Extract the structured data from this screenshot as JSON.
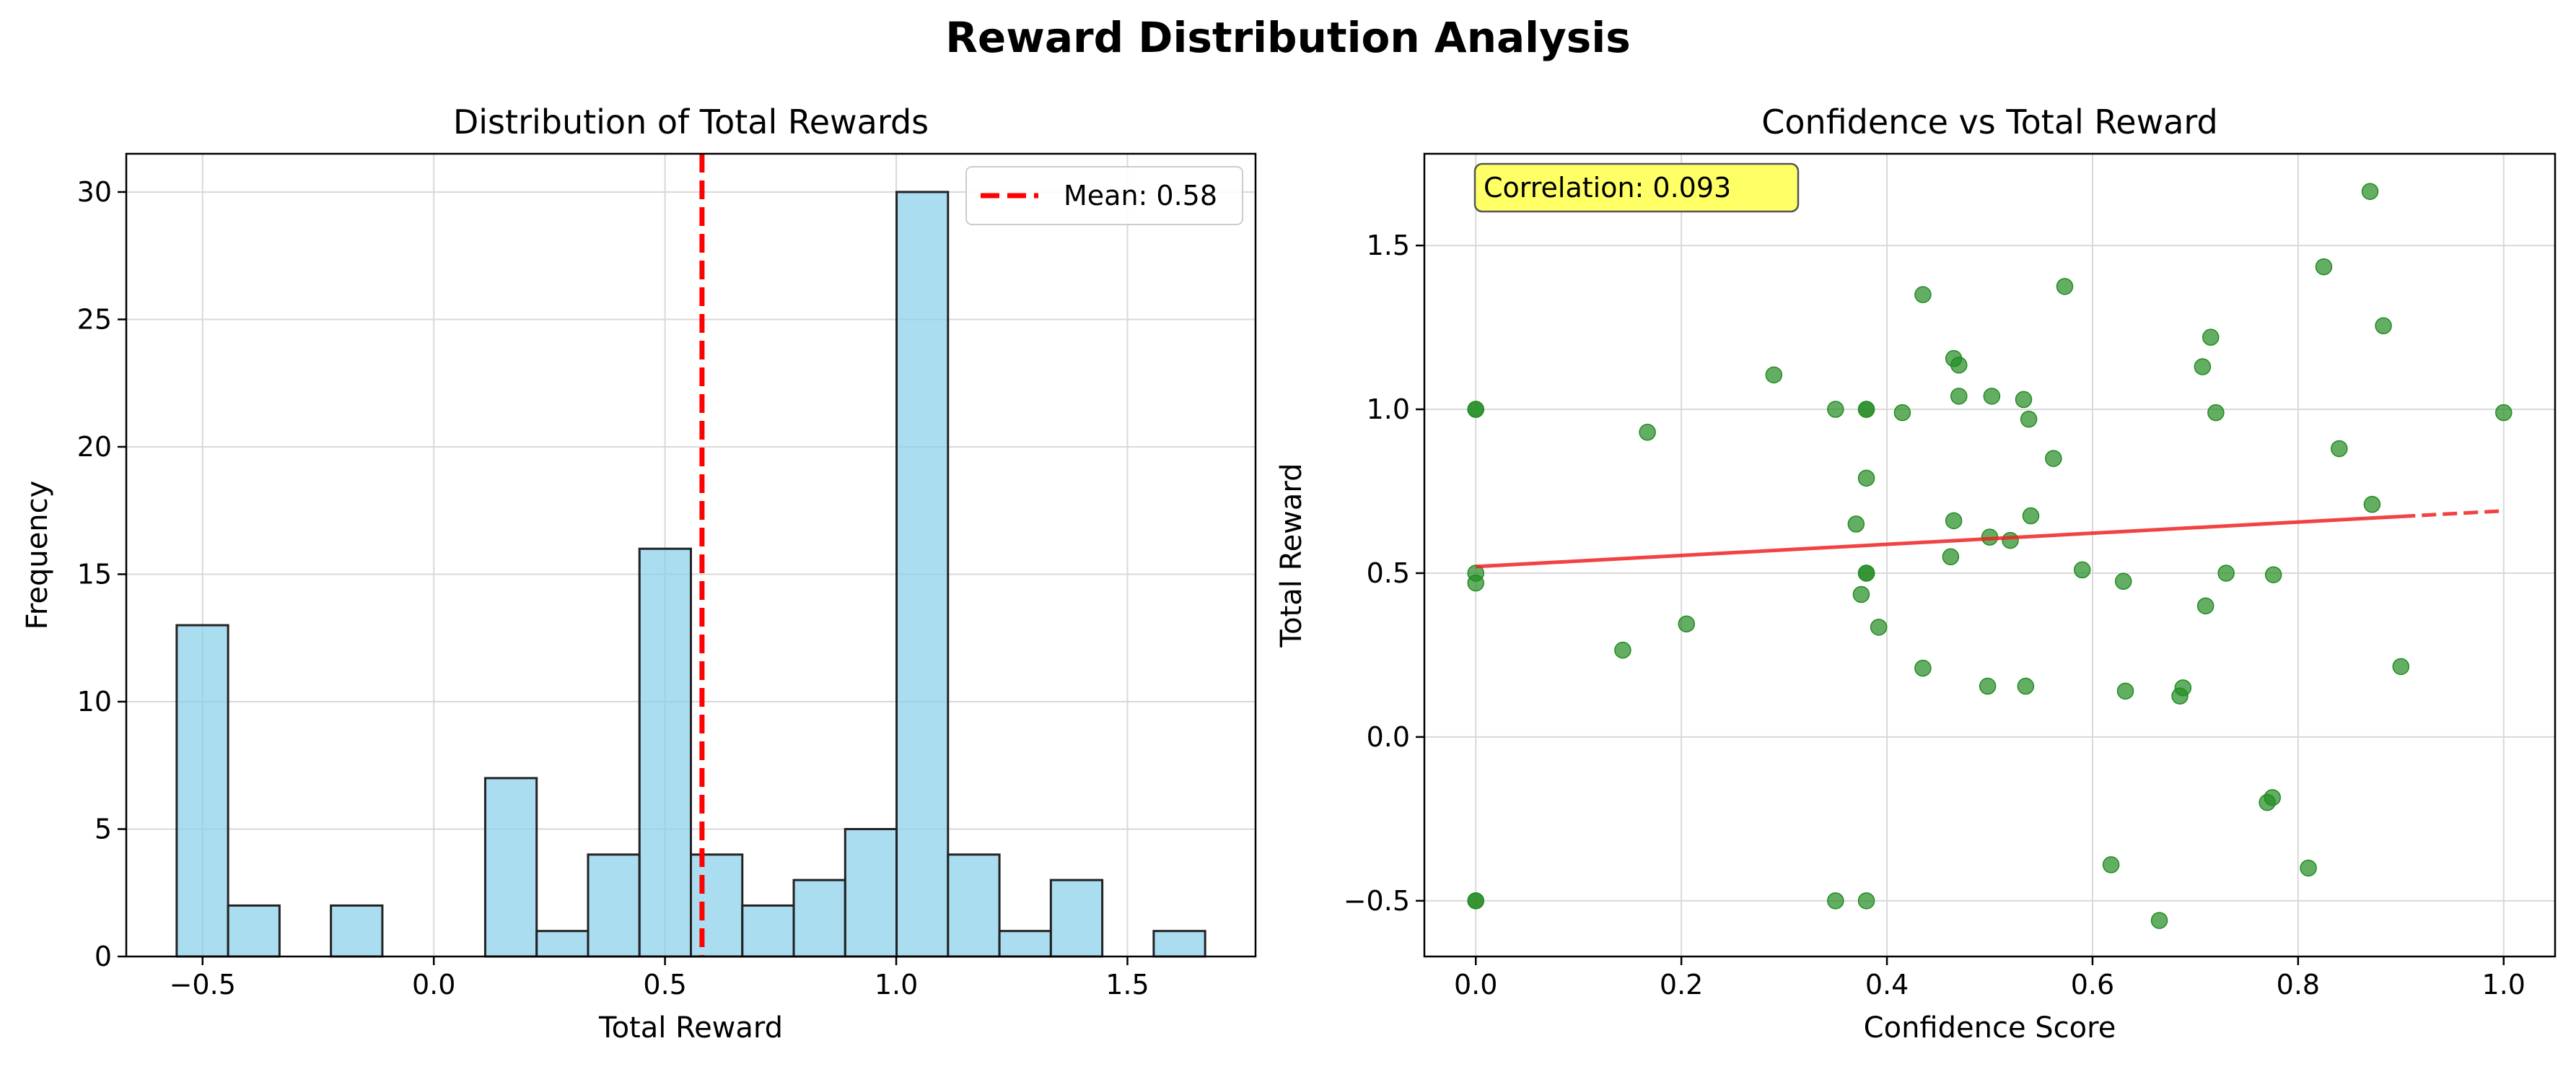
{
  "suptitle": "Reward Distribution Analysis",
  "colors": {
    "hist_fill": "#87CEEB",
    "hist_edge": "#222222",
    "mean_line": "#FF0000",
    "scatter": "#228B22",
    "trend": "#EE2222",
    "annot_bg": "#FFFF66"
  },
  "chart_data": [
    {
      "type": "bar",
      "title": "Distribution of Total Rewards",
      "xlabel": "Total Reward",
      "ylabel": "Frequency",
      "xlim": [
        -0.665,
        1.777
      ],
      "ylim": [
        0,
        31.5
      ],
      "xticks": [
        -0.5,
        0.0,
        0.5,
        1.0,
        1.5
      ],
      "xtick_labels": [
        "−0.5",
        "0.0",
        "0.5",
        "1.0",
        "1.5"
      ],
      "yticks": [
        0,
        5,
        10,
        15,
        20,
        25,
        30
      ],
      "ytick_labels": [
        "0",
        "5",
        "10",
        "15",
        "20",
        "25",
        "30"
      ],
      "bin_edges": [
        -0.556,
        -0.4448,
        -0.3336,
        -0.2224,
        -0.1112,
        0.0,
        0.1112,
        0.2224,
        0.3336,
        0.4448,
        0.556,
        0.6672,
        0.7784,
        0.8896,
        1.0008,
        1.112,
        1.2232,
        1.3344,
        1.4456,
        1.5568,
        1.668
      ],
      "counts": [
        13,
        2,
        0,
        2,
        0,
        0,
        7,
        1,
        4,
        16,
        4,
        2,
        3,
        5,
        30,
        4,
        1,
        3,
        0,
        1
      ],
      "grid": true,
      "mean": 0.58,
      "legend": {
        "label": "Mean: 0.58",
        "position": "upper right"
      }
    },
    {
      "type": "scatter",
      "title": "Confidence vs Total Reward",
      "xlabel": "Confidence Score",
      "ylabel": "Total Reward",
      "xlim": [
        -0.05,
        1.05
      ],
      "ylim": [
        -0.67,
        1.78
      ],
      "xticks": [
        0.0,
        0.2,
        0.4,
        0.6,
        0.8,
        1.0
      ],
      "xtick_labels": [
        "0.0",
        "0.2",
        "0.4",
        "0.6",
        "0.8",
        "1.0"
      ],
      "yticks": [
        -0.5,
        0.0,
        0.5,
        1.0,
        1.5
      ],
      "ytick_labels": [
        "−0.5",
        "0.0",
        "0.5",
        "1.0",
        "1.5"
      ],
      "grid": true,
      "annotation": "Correlation: 0.093",
      "trend": {
        "intercept": 0.52,
        "slope": 0.17,
        "x_solid_end": 0.9
      },
      "points": [
        [
          0.0,
          1.0
        ],
        [
          0.0,
          1.0
        ],
        [
          0.0,
          0.5
        ],
        [
          0.0,
          0.47
        ],
        [
          0.0,
          -0.5
        ],
        [
          0.0,
          -0.5
        ],
        [
          0.143,
          0.265
        ],
        [
          0.167,
          0.93
        ],
        [
          0.205,
          0.345
        ],
        [
          0.29,
          1.105
        ],
        [
          0.35,
          1.0
        ],
        [
          0.35,
          -0.5
        ],
        [
          0.37,
          0.65
        ],
        [
          0.375,
          0.435
        ],
        [
          0.38,
          1.0
        ],
        [
          0.38,
          1.0
        ],
        [
          0.38,
          0.79
        ],
        [
          0.38,
          0.5
        ],
        [
          0.38,
          0.5
        ],
        [
          0.38,
          -0.5
        ],
        [
          0.392,
          0.335
        ],
        [
          0.415,
          0.99
        ],
        [
          0.435,
          1.35
        ],
        [
          0.435,
          0.21
        ],
        [
          0.462,
          0.55
        ],
        [
          0.465,
          1.155
        ],
        [
          0.465,
          0.66
        ],
        [
          0.47,
          1.135
        ],
        [
          0.47,
          1.04
        ],
        [
          0.498,
          0.155
        ],
        [
          0.5,
          0.61
        ],
        [
          0.502,
          1.04
        ],
        [
          0.52,
          0.6
        ],
        [
          0.533,
          1.03
        ],
        [
          0.535,
          0.155
        ],
        [
          0.538,
          0.97
        ],
        [
          0.54,
          0.675
        ],
        [
          0.562,
          0.85
        ],
        [
          0.573,
          1.375
        ],
        [
          0.59,
          0.51
        ],
        [
          0.618,
          -0.39
        ],
        [
          0.63,
          0.475
        ],
        [
          0.632,
          0.14
        ],
        [
          0.665,
          -0.56
        ],
        [
          0.685,
          0.125
        ],
        [
          0.688,
          0.15
        ],
        [
          0.707,
          1.13
        ],
        [
          0.71,
          0.4
        ],
        [
          0.715,
          1.22
        ],
        [
          0.72,
          0.99
        ],
        [
          0.73,
          0.5
        ],
        [
          0.77,
          -0.2
        ],
        [
          0.775,
          -0.185
        ],
        [
          0.776,
          0.495
        ],
        [
          0.81,
          -0.4
        ],
        [
          0.825,
          1.435
        ],
        [
          0.84,
          0.88
        ],
        [
          0.87,
          1.665
        ],
        [
          0.872,
          0.71
        ],
        [
          0.883,
          1.255
        ],
        [
          0.9,
          0.215
        ],
        [
          1.0,
          0.99
        ]
      ]
    }
  ]
}
